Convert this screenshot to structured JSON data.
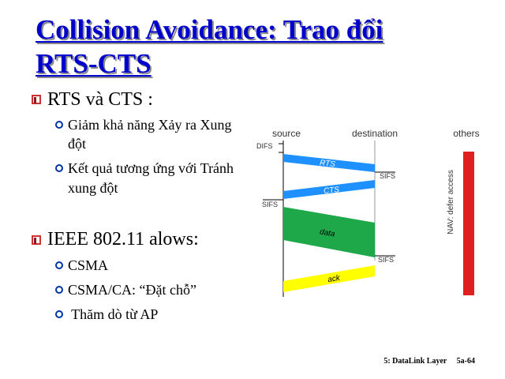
{
  "slide": {
    "title_line1": "Collision Avoidance: Trao đổi",
    "title_line2": "RTS-CTS",
    "bullets": [
      {
        "text": "RTS và CTS :",
        "sub": [
          {
            "lines": [
              "Giảm khả năng Xảy ra Xung",
              "đột"
            ]
          },
          {
            "lines": [
              "Kết quả tương ứng với Tránh",
              "xung đột"
            ]
          }
        ]
      },
      {
        "text": "IEEE 802.11 alows:",
        "sub": [
          {
            "lines": [
              "CSMA"
            ]
          },
          {
            "lines": [
              "CSMA/CA: “Đặt chỗ”"
            ]
          },
          {
            "lines": [
              " Thăm dò từ AP"
            ]
          }
        ]
      }
    ],
    "footer_left": "5: DataLink Layer",
    "footer_right": "5a-64"
  },
  "diagram": {
    "col_source": "source",
    "col_destination": "destination",
    "col_others": "others",
    "difs": "DIFS",
    "sifs": "SIFS",
    "rts": "RTS",
    "cts": "CTS",
    "data": "data",
    "ack": "ack",
    "nav": "NAV: defer access",
    "colors": {
      "rts_cts": "#1e90ff",
      "data": "#1fa84a",
      "ack": "#ffff00",
      "nav": "#e02020"
    }
  }
}
